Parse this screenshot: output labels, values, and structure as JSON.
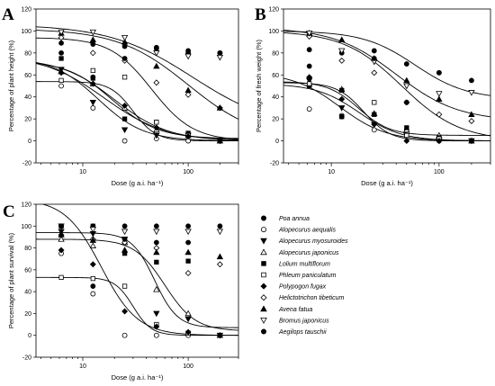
{
  "legend": {
    "entries": [
      {
        "name": "Poa annua",
        "marker": "circle-filled"
      },
      {
        "name": "Alopecurus aequalis",
        "marker": "circle-open"
      },
      {
        "name": "Alopecurus myosuroides",
        "marker": "tri-down-filled"
      },
      {
        "name": "Alopecurus japonicus",
        "marker": "tri-up-open"
      },
      {
        "name": "Lolium multiflorum",
        "marker": "square-filled"
      },
      {
        "name": "Phleum paniculatum",
        "marker": "square-open"
      },
      {
        "name": "Polypogon fugax",
        "marker": "diamond-filled"
      },
      {
        "name": "Helictotrichon tibeticum",
        "marker": "diamond-open"
      },
      {
        "name": "Avena fatua",
        "marker": "tri-up-filled"
      },
      {
        "name": "Bromus japonicus",
        "marker": "tri-down-open"
      },
      {
        "name": "Aegilops tauschii",
        "marker": "circle-filled"
      }
    ]
  },
  "chart_data": [
    {
      "panel": "A",
      "type": "scatter",
      "xlabel": "Dose (g a.i. ha⁻¹)",
      "ylabel": "Percentage of plant height (%)",
      "xscale": "log",
      "xlim": [
        3.6,
        300
      ],
      "ylim": [
        -20,
        120
      ],
      "xticks": [
        "10",
        "100"
      ],
      "yticks": [
        -20,
        0,
        20,
        40,
        60,
        80,
        100,
        120
      ],
      "x": [
        6.25,
        12.5,
        25,
        50,
        100,
        200
      ],
      "series": [
        {
          "marker": "circle-filled",
          "values": [
            89,
            88,
            86,
            84,
            80,
            80
          ]
        },
        {
          "marker": "circle-open",
          "values": [
            50,
            30,
            0,
            2,
            0,
            0
          ]
        },
        {
          "marker": "tri-down-filled",
          "values": [
            65,
            35,
            10,
            5,
            5,
            0
          ]
        },
        {
          "marker": "tri-up-open",
          "values": [
            63,
            52,
            30,
            10,
            5,
            0
          ]
        },
        {
          "marker": "square-filled",
          "values": [
            75,
            57,
            20,
            17,
            7,
            0
          ]
        },
        {
          "marker": "square-open",
          "values": [
            55,
            64,
            58,
            17,
            5,
            0
          ]
        },
        {
          "marker": "diamond-filled",
          "values": [
            62,
            52,
            32,
            12,
            4,
            0
          ]
        },
        {
          "marker": "diamond-open",
          "values": [
            94,
            80,
            73,
            53,
            42,
            30
          ]
        },
        {
          "marker": "tri-up-filled",
          "values": [
            98,
            92,
            90,
            68,
            46,
            30
          ]
        },
        {
          "marker": "tri-down-open",
          "values": [
            99,
            99,
            94,
            80,
            77,
            76
          ]
        },
        {
          "marker": "circle-filled",
          "values": [
            80,
            58,
            75,
            85,
            82,
            80
          ]
        }
      ],
      "fitted_curves": [
        {
          "top": 106,
          "bottom": 10,
          "ed50": 110,
          "slope": 1.1
        },
        {
          "top": 102,
          "bottom": 0,
          "ed50": 100,
          "slope": 1.3
        },
        {
          "top": 94,
          "bottom": 0,
          "ed50": 45,
          "slope": 2.2
        },
        {
          "top": 76,
          "bottom": 0,
          "ed50": 14,
          "slope": 2.0
        },
        {
          "top": 73,
          "bottom": 2,
          "ed50": 19,
          "slope": 2.0
        },
        {
          "top": 54,
          "bottom": 0,
          "ed50": 30,
          "slope": 4.0
        },
        {
          "top": 78,
          "bottom": 0,
          "ed50": 16,
          "slope": 1.5
        },
        {
          "top": 75,
          "bottom": 0,
          "ed50": 20,
          "slope": 1.7
        }
      ]
    },
    {
      "panel": "B",
      "type": "scatter",
      "xlabel": "Dose (g a.i. ha⁻¹)",
      "ylabel": "Percentage of fresh weight (%)",
      "xscale": "log",
      "xlim": [
        3.6,
        300
      ],
      "ylim": [
        -20,
        120
      ],
      "xticks": [
        "10",
        "100"
      ],
      "yticks": [
        -20,
        0,
        20,
        40,
        60,
        80,
        100,
        120
      ],
      "x": [
        6.25,
        12.5,
        25,
        50,
        100,
        200
      ],
      "series": [
        {
          "marker": "circle-filled",
          "values": [
            83,
            80,
            82,
            70,
            62,
            55
          ]
        },
        {
          "marker": "circle-open",
          "values": [
            29,
            23,
            10,
            10,
            0,
            0
          ]
        },
        {
          "marker": "tri-down-filled",
          "values": [
            55,
            30,
            15,
            5,
            0,
            0
          ]
        },
        {
          "marker": "tri-up-open",
          "values": [
            52,
            47,
            25,
            10,
            5,
            0
          ]
        },
        {
          "marker": "square-filled",
          "values": [
            50,
            46,
            24,
            12,
            3,
            0
          ]
        },
        {
          "marker": "square-open",
          "values": [
            52,
            22,
            35,
            5,
            2,
            0
          ]
        },
        {
          "marker": "diamond-filled",
          "values": [
            58,
            38,
            15,
            0,
            0,
            0
          ]
        },
        {
          "marker": "diamond-open",
          "values": [
            95,
            73,
            62,
            35,
            24,
            18
          ]
        },
        {
          "marker": "tri-up-filled",
          "values": [
            98,
            92,
            75,
            55,
            38,
            24
          ]
        },
        {
          "marker": "tri-down-open",
          "values": [
            98,
            82,
            72,
            50,
            43,
            44
          ]
        },
        {
          "marker": "circle-filled",
          "values": [
            68,
            22,
            75,
            35,
            62,
            0
          ]
        }
      ],
      "fitted_curves": [
        {
          "top": 100,
          "bottom": 38,
          "ed50": 60,
          "slope": 1.8
        },
        {
          "top": 103,
          "bottom": 18,
          "ed50": 40,
          "slope": 1.5
        },
        {
          "top": 100,
          "bottom": 0,
          "ed50": 45,
          "slope": 1.6
        },
        {
          "top": 62,
          "bottom": 0,
          "ed50": 12,
          "slope": 2.0
        },
        {
          "top": 54,
          "bottom": 5,
          "ed50": 18,
          "slope": 3.0
        },
        {
          "top": 52,
          "bottom": 0,
          "ed50": 18,
          "slope": 2.2
        },
        {
          "top": 53,
          "bottom": 0,
          "ed50": 20,
          "slope": 3.5
        }
      ]
    },
    {
      "panel": "C",
      "type": "scatter",
      "xlabel": "Dose (g a.i. ha⁻¹)",
      "ylabel": "Percentage of plant survival (%)",
      "xscale": "log",
      "xlim": [
        3.6,
        300
      ],
      "ylim": [
        -20,
        120
      ],
      "xticks": [
        "10",
        "100"
      ],
      "yticks": [
        -20,
        0,
        20,
        40,
        60,
        80,
        100,
        120
      ],
      "x": [
        6.25,
        12.5,
        25,
        50,
        100,
        200
      ],
      "series": [
        {
          "marker": "circle-filled",
          "values": [
            100,
            100,
            100,
            100,
            100,
            100
          ]
        },
        {
          "marker": "circle-open",
          "values": [
            75,
            38,
            0,
            0,
            0,
            0
          ]
        },
        {
          "marker": "tri-down-filled",
          "values": [
            95,
            93,
            88,
            20,
            15,
            0
          ]
        },
        {
          "marker": "tri-up-open",
          "values": [
            88,
            82,
            85,
            42,
            20,
            0
          ]
        },
        {
          "marker": "square-filled",
          "values": [
            100,
            100,
            75,
            67,
            68,
            0
          ]
        },
        {
          "marker": "square-open",
          "values": [
            53,
            52,
            45,
            10,
            2,
            0
          ]
        },
        {
          "marker": "diamond-filled",
          "values": [
            78,
            65,
            22,
            8,
            3,
            0
          ]
        },
        {
          "marker": "diamond-open",
          "values": [
            92,
            88,
            85,
            80,
            57,
            65
          ]
        },
        {
          "marker": "tri-up-filled",
          "values": [
            92,
            87,
            78,
            76,
            76,
            72
          ]
        },
        {
          "marker": "tri-down-open",
          "values": [
            100,
            97,
            95,
            95,
            95,
            95
          ]
        },
        {
          "marker": "circle-filled",
          "values": [
            100,
            45,
            88,
            85,
            85,
            0
          ]
        }
      ],
      "fitted_curves": [
        {
          "top": 94,
          "bottom": 7,
          "ed50": 48,
          "slope": 4.0
        },
        {
          "top": 88,
          "bottom": 4,
          "ed50": 60,
          "slope": 3.0
        },
        {
          "top": 125,
          "bottom": 0,
          "ed50": 15,
          "slope": 2.5
        },
        {
          "top": 53,
          "bottom": 0,
          "ed50": 30,
          "slope": 5.0
        }
      ]
    }
  ]
}
